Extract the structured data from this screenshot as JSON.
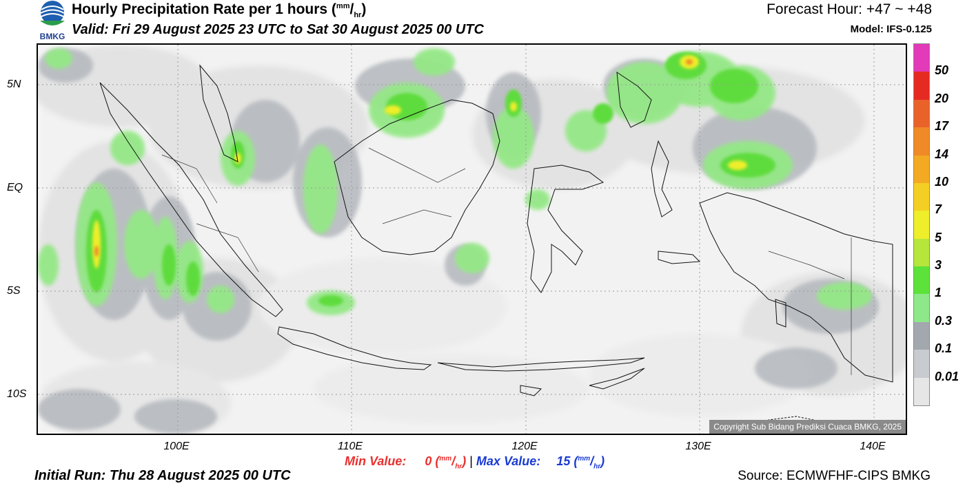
{
  "header": {
    "title": "Hourly Precipitation Rate per 1 hours",
    "title_unit_num": "mm",
    "title_unit_den": "hr",
    "valid": "Valid: Fri 29 August 2025 23 UTC to Sat 30 August 2025 00 UTC",
    "forecast_hour": "Forecast Hour: +47 ~ +48",
    "model": "Model: IFS-0.125"
  },
  "logo": {
    "text": "BMKG",
    "icon": "bmkg-logo-icon"
  },
  "map": {
    "lat_labels": [
      "5N",
      "EQ",
      "5S",
      "10S"
    ],
    "lon_labels": [
      "100E",
      "110E",
      "120E",
      "130E",
      "140E"
    ],
    "copyright": "Copyright Sub Bidang Prediksi Cuaca BMKG, 2025"
  },
  "colorbar": {
    "labels": [
      "50",
      "20",
      "17",
      "14",
      "10",
      "7",
      "5",
      "3",
      "1",
      "0.3",
      "0.1",
      "0.01"
    ],
    "colors": [
      "#e23ab8",
      "#e52a22",
      "#e9622a",
      "#ef8a26",
      "#f3aa22",
      "#f4cf23",
      "#eeee2a",
      "#b6e63b",
      "#5ce23a",
      "#8ee88a",
      "#a3a7ae",
      "#c8cbcf",
      "#e6e6e6"
    ]
  },
  "footer": {
    "min_label": "Min Value:",
    "min_value": "0",
    "separator": "|",
    "max_label": "Max Value:",
    "max_value": "15",
    "unit_num": "mm",
    "unit_den": "hr",
    "initial_run": "Initial Run: Thu 28 August 2025 00 UTC",
    "source": "Source: ECMWFHF-CIPS BMKG"
  }
}
